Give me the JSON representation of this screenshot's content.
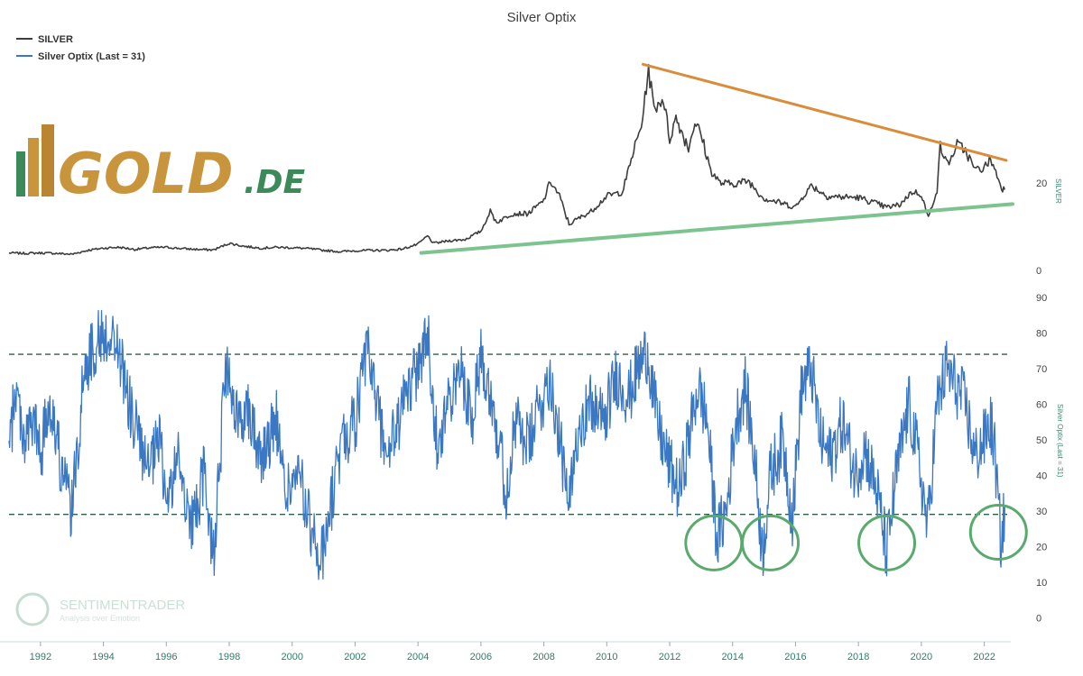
{
  "colors": {
    "silver_line": "#3d3d3d",
    "optix_line": "#3a78c3",
    "resistance_trendline": "#d98c3a",
    "support_trendline": "#7cc38f",
    "threshold_lines": "#2f5f48",
    "highlight_circles": "#5aaa6e",
    "x_tick_text": "#2e7d6a",
    "logo_gold": "#c9953c",
    "logo_green": "#3c8a5a"
  },
  "logo": {
    "main": "GOLD",
    "suffix": ".DE"
  },
  "watermark": {
    "name": "SENTIMENTRADER",
    "tagline": "Analysis over Emotion"
  },
  "chart_data": [
    {
      "type": "line",
      "title": "Silver Optix",
      "legend": [
        "SILVER",
        "Silver Optix (Last = 31)"
      ],
      "legend_position": "top-left",
      "ylabel": "SILVER",
      "y_axis_side": "right",
      "ylim": [
        0,
        45
      ],
      "yticks": [
        0,
        20
      ],
      "x_range": [
        1991,
        2022.7
      ],
      "grid": false,
      "series": [
        {
          "name": "SILVER",
          "points": [
            [
              1991.0,
              4.0
            ],
            [
              1991.5,
              3.9
            ],
            [
              1992.0,
              4.0
            ],
            [
              1992.5,
              3.9
            ],
            [
              1993.0,
              3.7
            ],
            [
              1993.5,
              4.6
            ],
            [
              1994.0,
              5.1
            ],
            [
              1994.5,
              5.3
            ],
            [
              1995.0,
              4.8
            ],
            [
              1995.5,
              5.2
            ],
            [
              1996.0,
              5.3
            ],
            [
              1996.5,
              5.0
            ],
            [
              1997.0,
              4.8
            ],
            [
              1997.5,
              4.7
            ],
            [
              1998.0,
              6.2
            ],
            [
              1998.5,
              5.5
            ],
            [
              1999.0,
              5.1
            ],
            [
              1999.5,
              5.3
            ],
            [
              2000.0,
              5.2
            ],
            [
              2000.5,
              5.0
            ],
            [
              2001.0,
              4.6
            ],
            [
              2001.5,
              4.3
            ],
            [
              2002.0,
              4.5
            ],
            [
              2002.5,
              4.6
            ],
            [
              2003.0,
              4.6
            ],
            [
              2003.5,
              4.9
            ],
            [
              2004.0,
              6.0
            ],
            [
              2004.3,
              7.9
            ],
            [
              2004.5,
              6.2
            ],
            [
              2005.0,
              6.8
            ],
            [
              2005.5,
              7.1
            ],
            [
              2006.0,
              9.0
            ],
            [
              2006.3,
              13.5
            ],
            [
              2006.5,
              11.0
            ],
            [
              2007.0,
              13.0
            ],
            [
              2007.5,
              13.0
            ],
            [
              2008.0,
              16.0
            ],
            [
              2008.2,
              20.5
            ],
            [
              2008.5,
              17.0
            ],
            [
              2008.8,
              10.5
            ],
            [
              2009.0,
              11.5
            ],
            [
              2009.5,
              13.5
            ],
            [
              2010.0,
              17.0
            ],
            [
              2010.5,
              18.0
            ],
            [
              2010.9,
              28.5
            ],
            [
              2011.1,
              33.0
            ],
            [
              2011.33,
              46.0
            ],
            [
              2011.5,
              37.0
            ],
            [
              2011.8,
              39.5
            ],
            [
              2012.0,
              30.0
            ],
            [
              2012.2,
              35.0
            ],
            [
              2012.6,
              28.0
            ],
            [
              2012.8,
              34.0
            ],
            [
              2013.0,
              31.0
            ],
            [
              2013.3,
              23.0
            ],
            [
              2013.6,
              20.0
            ],
            [
              2014.0,
              19.8
            ],
            [
              2014.5,
              20.5
            ],
            [
              2015.0,
              16.5
            ],
            [
              2015.5,
              15.5
            ],
            [
              2016.0,
              14.5
            ],
            [
              2016.5,
              19.5
            ],
            [
              2017.0,
              17.0
            ],
            [
              2017.5,
              16.8
            ],
            [
              2018.0,
              16.7
            ],
            [
              2018.5,
              15.5
            ],
            [
              2018.9,
              14.4
            ],
            [
              2019.3,
              15.0
            ],
            [
              2019.7,
              18.0
            ],
            [
              2020.0,
              17.5
            ],
            [
              2020.22,
              12.0
            ],
            [
              2020.5,
              18.5
            ],
            [
              2020.6,
              28.5
            ],
            [
              2020.8,
              24.5
            ],
            [
              2021.0,
              26.0
            ],
            [
              2021.1,
              29.0
            ],
            [
              2021.4,
              27.5
            ],
            [
              2021.7,
              23.0
            ],
            [
              2022.0,
              23.5
            ],
            [
              2022.2,
              25.5
            ],
            [
              2022.45,
              21.0
            ],
            [
              2022.55,
              19.0
            ],
            [
              2022.65,
              18.5
            ]
          ]
        }
      ]
    },
    {
      "type": "line",
      "ylabel": "Silver Optix (Last = 31)",
      "y_axis_side": "right",
      "ylim": [
        -5,
        93
      ],
      "yticks": [
        0,
        10,
        20,
        30,
        40,
        50,
        60,
        70,
        80,
        90
      ],
      "x_range": [
        1991,
        2022.7
      ],
      "xticks": [
        "1992",
        "1994",
        "1996",
        "1998",
        "2000",
        "2002",
        "2004",
        "2006",
        "2008",
        "2010",
        "2012",
        "2014",
        "2016",
        "2018",
        "2020",
        "2022"
      ],
      "grid": false,
      "threshold_lines": [
        74,
        29
      ],
      "series": [
        {
          "name": "Silver Optix (Last = 31)",
          "last": 31,
          "points": [
            [
              1991.0,
              45
            ],
            [
              1991.2,
              65
            ],
            [
              1991.5,
              50
            ],
            [
              1991.8,
              55
            ],
            [
              1992.0,
              45
            ],
            [
              1992.3,
              62
            ],
            [
              1992.7,
              40
            ],
            [
              1993.0,
              30
            ],
            [
              1993.4,
              70
            ],
            [
              1993.8,
              78
            ],
            [
              1994.2,
              80
            ],
            [
              1994.5,
              75
            ],
            [
              1994.8,
              60
            ],
            [
              1995.0,
              55
            ],
            [
              1995.4,
              40
            ],
            [
              1995.8,
              50
            ],
            [
              1996.0,
              32
            ],
            [
              1996.4,
              45
            ],
            [
              1996.8,
              25
            ],
            [
              1997.2,
              40
            ],
            [
              1997.5,
              18
            ],
            [
              1997.9,
              70
            ],
            [
              1998.2,
              55
            ],
            [
              1998.6,
              60
            ],
            [
              1999.0,
              45
            ],
            [
              1999.5,
              55
            ],
            [
              1999.8,
              35
            ],
            [
              2000.2,
              40
            ],
            [
              2000.6,
              25
            ],
            [
              2000.9,
              15
            ],
            [
              2001.2,
              30
            ],
            [
              2001.6,
              50
            ],
            [
              2002.0,
              55
            ],
            [
              2002.4,
              75
            ],
            [
              2002.7,
              60
            ],
            [
              2003.0,
              45
            ],
            [
              2003.4,
              55
            ],
            [
              2003.7,
              65
            ],
            [
              2004.0,
              70
            ],
            [
              2004.3,
              80
            ],
            [
              2004.6,
              50
            ],
            [
              2005.0,
              60
            ],
            [
              2005.4,
              70
            ],
            [
              2005.7,
              55
            ],
            [
              2006.0,
              75
            ],
            [
              2006.4,
              60
            ],
            [
              2006.8,
              35
            ],
            [
              2007.1,
              55
            ],
            [
              2007.5,
              48
            ],
            [
              2007.9,
              60
            ],
            [
              2008.2,
              68
            ],
            [
              2008.5,
              50
            ],
            [
              2008.8,
              30
            ],
            [
              2009.1,
              55
            ],
            [
              2009.5,
              60
            ],
            [
              2009.9,
              55
            ],
            [
              2010.3,
              68
            ],
            [
              2010.7,
              62
            ],
            [
              2011.0,
              70
            ],
            [
              2011.3,
              75
            ],
            [
              2011.6,
              55
            ],
            [
              2011.9,
              45
            ],
            [
              2012.3,
              35
            ],
            [
              2012.6,
              50
            ],
            [
              2012.9,
              65
            ],
            [
              2013.2,
              55
            ],
            [
              2013.5,
              22
            ],
            [
              2013.8,
              30
            ],
            [
              2014.1,
              55
            ],
            [
              2014.4,
              65
            ],
            [
              2014.7,
              45
            ],
            [
              2014.95,
              18
            ],
            [
              2015.2,
              40
            ],
            [
              2015.6,
              50
            ],
            [
              2015.9,
              28
            ],
            [
              2016.2,
              65
            ],
            [
              2016.5,
              70
            ],
            [
              2016.8,
              50
            ],
            [
              2017.1,
              45
            ],
            [
              2017.5,
              55
            ],
            [
              2017.9,
              40
            ],
            [
              2018.2,
              48
            ],
            [
              2018.6,
              35
            ],
            [
              2018.9,
              18
            ],
            [
              2019.2,
              40
            ],
            [
              2019.6,
              60
            ],
            [
              2019.9,
              45
            ],
            [
              2020.2,
              25
            ],
            [
              2020.5,
              60
            ],
            [
              2020.8,
              70
            ],
            [
              2021.1,
              65
            ],
            [
              2021.4,
              60
            ],
            [
              2021.7,
              45
            ],
            [
              2022.0,
              50
            ],
            [
              2022.2,
              55
            ],
            [
              2022.35,
              45
            ],
            [
              2022.45,
              30
            ],
            [
              2022.55,
              20
            ],
            [
              2022.65,
              31
            ]
          ]
        }
      ]
    }
  ]
}
